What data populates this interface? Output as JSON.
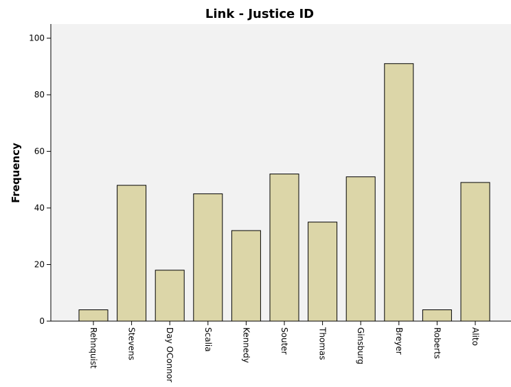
{
  "chart_data": {
    "type": "bar",
    "title": "Link - Justice ID",
    "xlabel": "",
    "ylabel": "Frequency",
    "categories": [
      "Rehnquist",
      "Stevens",
      "Day OConnor",
      "Scalia",
      "Kennedy",
      "Souter",
      "Thomas",
      "Ginsburg",
      "Breyer",
      "Roberts",
      "Alito"
    ],
    "values": [
      4,
      48,
      18,
      45,
      32,
      52,
      35,
      51,
      91,
      4,
      49
    ],
    "ylim": [
      0,
      105
    ],
    "yticks": [
      0,
      20,
      40,
      60,
      80,
      100
    ],
    "grid": false,
    "legend": "none",
    "colors": {
      "bar_fill": "#dcd6a8",
      "plot_background": "#f2f2f2",
      "bar_stroke": "#000000"
    }
  }
}
